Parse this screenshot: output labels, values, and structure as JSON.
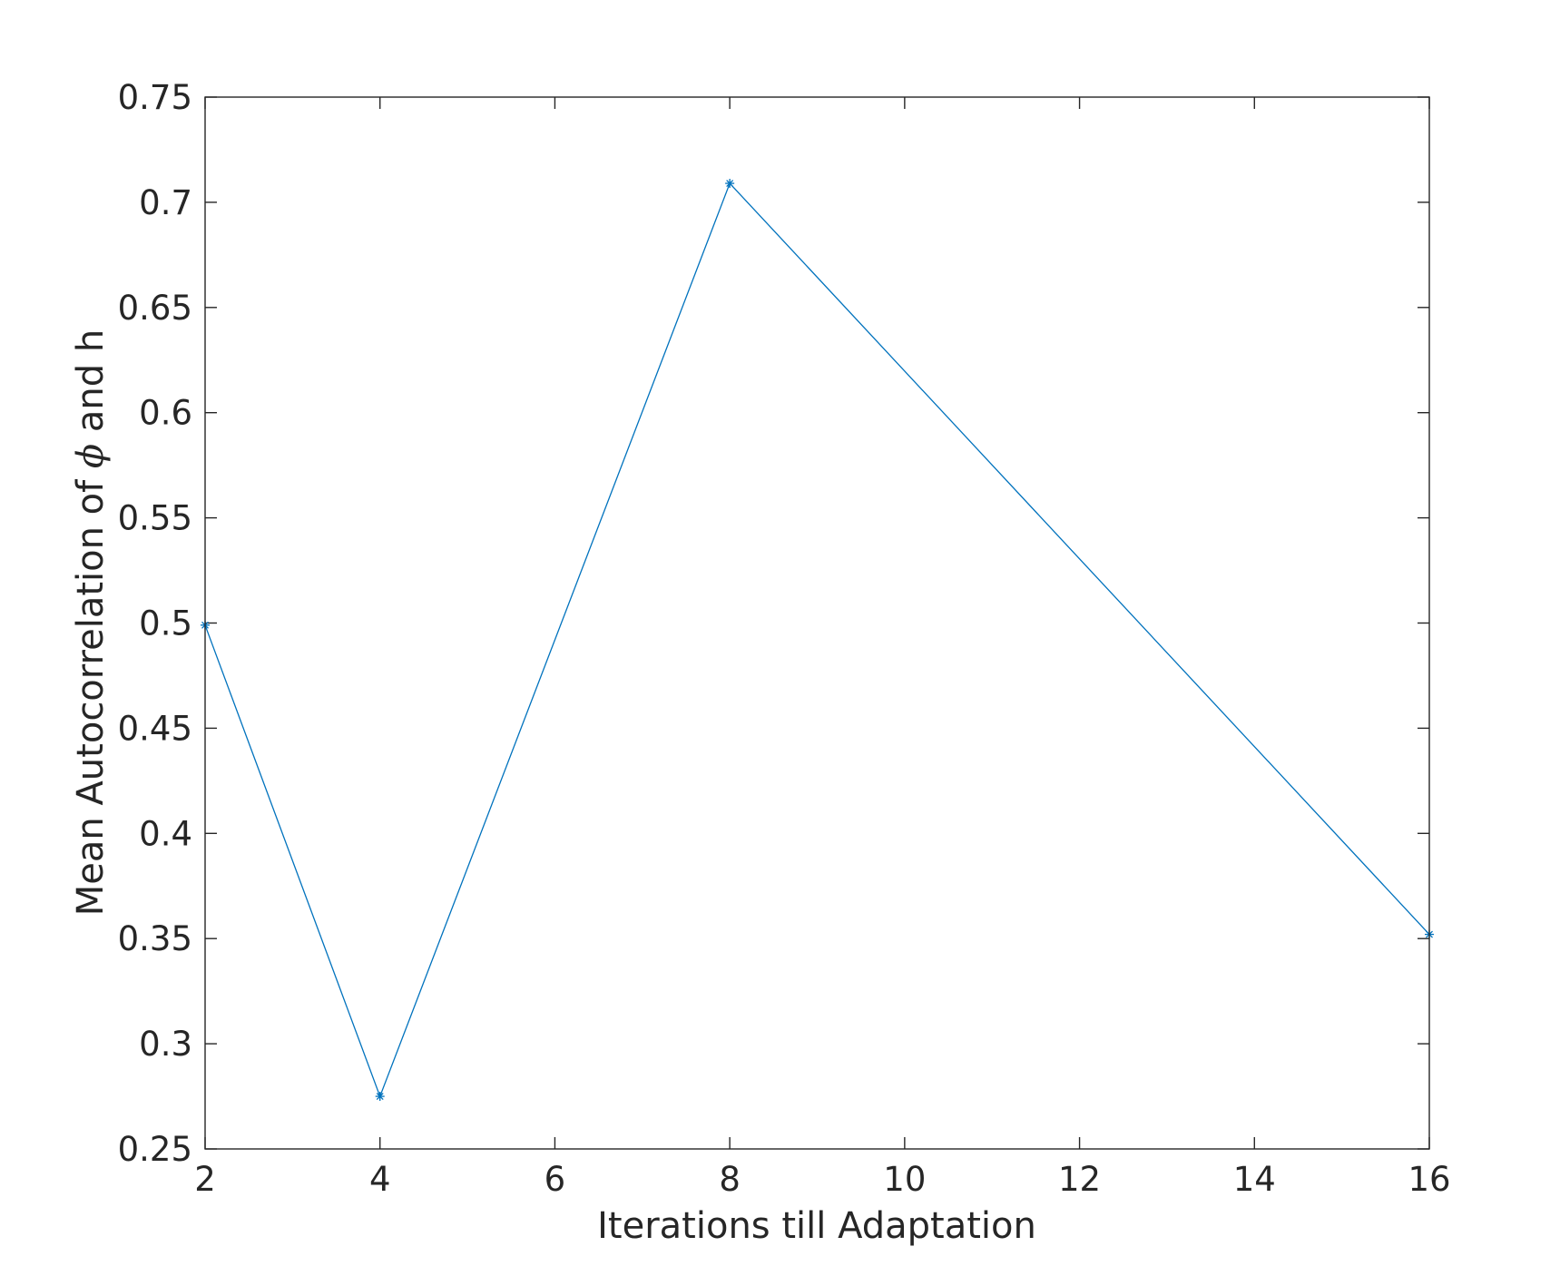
{
  "chart_data": {
    "type": "line",
    "title": "",
    "xlabel": "Iterations till Adaptation",
    "ylabel": {
      "prefix": "Mean Autocorrelation of ",
      "symbol": "ϕ",
      "suffix": " and h"
    },
    "xlim": [
      2,
      16
    ],
    "ylim": [
      0.25,
      0.75
    ],
    "xticks": [
      "2",
      "4",
      "6",
      "8",
      "10",
      "12",
      "14",
      "16"
    ],
    "yticks": [
      "0.25",
      "0.3",
      "0.35",
      "0.4",
      "0.45",
      "0.5",
      "0.55",
      "0.6",
      "0.65",
      "0.7",
      "0.75"
    ],
    "grid": false,
    "marker": "asterisk",
    "line_color": "#0072BD",
    "axis_color": "#262626",
    "series": [
      {
        "x": [
          2,
          4,
          8,
          16
        ],
        "y": [
          0.499,
          0.275,
          0.709,
          0.352
        ]
      }
    ]
  }
}
